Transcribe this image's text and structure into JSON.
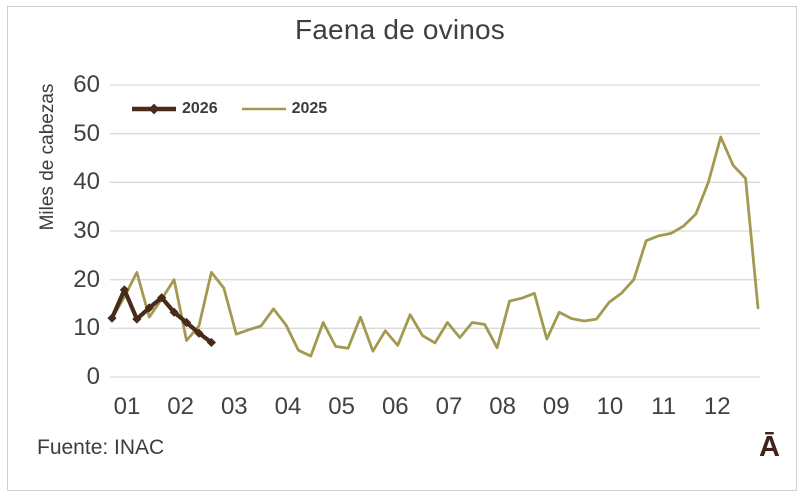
{
  "title": "Faena de ovinos",
  "source_note": "Fuente: INAC",
  "corner_mark": "Ā",
  "colors": {
    "series_2026": "#482b1b",
    "series_2025": "#a29a50",
    "gridline": "#d9d9d9",
    "text": "#3f3f3f",
    "frame_border": "#cdd0d3"
  },
  "y_axis": {
    "label": "Miles de cabezas",
    "tick_labels": [
      "0",
      "10",
      "20",
      "30",
      "40",
      "50",
      "60"
    ]
  },
  "x_axis": {
    "tick_labels": [
      "01",
      "02",
      "03",
      "04",
      "05",
      "06",
      "07",
      "08",
      "09",
      "10",
      "11",
      "12"
    ]
  },
  "legend": {
    "items": [
      {
        "label": "2026"
      },
      {
        "label": "2025"
      }
    ]
  },
  "chart_data": {
    "type": "line",
    "title": "Faena de ovinos",
    "xlabel": "",
    "ylabel": "Miles de cabezas",
    "ylim": [
      0,
      60
    ],
    "gridline_step": 10,
    "grid": "horizontal",
    "legend_position": "inside-top-left",
    "x_unit": "week-of-year",
    "categories": [
      "01",
      "02",
      "03",
      "04",
      "05",
      "06",
      "07",
      "08",
      "09",
      "10",
      "11",
      "12"
    ],
    "series": [
      {
        "name": "2026",
        "color": "#482b1b",
        "marker": "diamond",
        "line_width": 4.2,
        "values": [
          12.1,
          17.9,
          11.9,
          14.2,
          16.3,
          13.3,
          11.2,
          9,
          7.1
        ]
      },
      {
        "name": "2025",
        "color": "#a29a50",
        "marker": "none",
        "line_width": 2.8,
        "values": [
          12,
          16.5,
          21.5,
          12.3,
          16,
          20,
          7.5,
          10.5,
          21.5,
          18.3,
          8.8,
          9.7,
          10.5,
          14,
          10.7,
          5.5,
          4.3,
          11.2,
          6.3,
          5.9,
          12.3,
          5.3,
          9.5,
          6.5,
          12.8,
          8.5,
          7,
          11.2,
          8.1,
          11.2,
          10.8,
          6,
          15.6,
          16.2,
          17.2,
          7.8,
          13.3,
          12,
          11.5,
          11.9,
          15.3,
          17.2,
          20,
          28,
          29,
          29.5,
          31,
          33.5,
          40,
          49.3,
          43.5,
          40.8,
          14.2
        ]
      }
    ]
  }
}
